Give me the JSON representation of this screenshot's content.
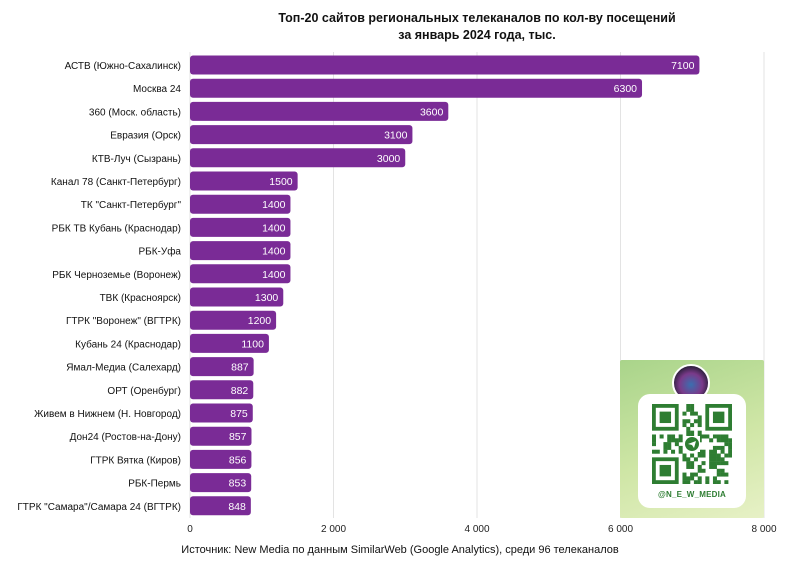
{
  "chart_data": {
    "type": "bar",
    "orientation": "horizontal",
    "title_lines": [
      "Топ-20 сайтов региональных телеканалов по кол-ву посещений",
      "за январь 2024 года, тыс."
    ],
    "categories": [
      "АСТВ (Южно-Сахалинск)",
      "Москва 24",
      "360 (Моск. область)",
      "Евразия (Орск)",
      "КТВ-Луч (Сызрань)",
      "Канал 78 (Санкт-Петербург)",
      "ТК \"Санкт-Петербург\"",
      "РБК ТВ Кубань (Краснодар)",
      "РБК-Уфа",
      "РБК Черноземье (Воронеж)",
      "ТВК (Красноярск)",
      "ГТРК \"Воронеж\" (ВГТРК)",
      "Кубань 24 (Краснодар)",
      "Ямал-Медиа (Салехард)",
      "ОРТ (Оренбург)",
      "Живем в Нижнем (Н. Новгород)",
      "Дон24 (Ростов-на-Дону)",
      "ГТРК Вятка (Киров)",
      "РБК-Пермь",
      "ГТРК \"Самара\"/Самара 24 (ВГТРК)"
    ],
    "values": [
      7100,
      6300,
      3600,
      3100,
      3000,
      1500,
      1400,
      1400,
      1400,
      1400,
      1300,
      1200,
      1100,
      887,
      882,
      875,
      857,
      856,
      853,
      848
    ],
    "xlim": [
      0,
      8000
    ],
    "x_ticks": [
      0,
      2000,
      4000,
      6000,
      8000
    ],
    "x_tick_labels": [
      "0",
      "2 000",
      "4 000",
      "6 000",
      "8 000"
    ],
    "grid": true,
    "bar_color": "#7a2b96",
    "label_color": "#ffffff",
    "source": "Источник: New Media по данным SimilarWeb (Google Analytics), среди 96 телеканалов"
  },
  "qr_card": {
    "handle": "@N_E_W_MEDIA",
    "accent": "#2e7d32"
  }
}
